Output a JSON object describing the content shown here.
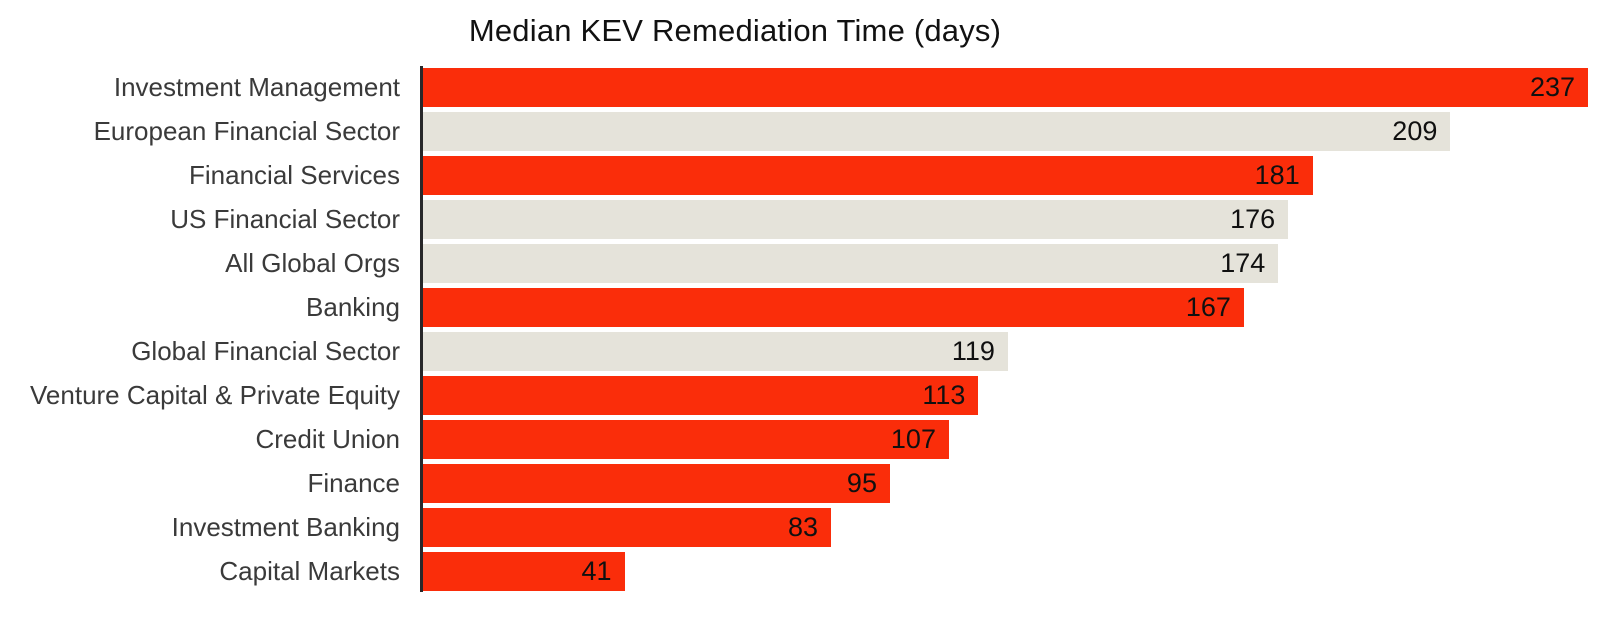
{
  "title": "Median KEV Remediation Time (days)",
  "colors": {
    "red": "#fa2d0a",
    "neutral": "#e5e3da",
    "axis": "#28282a",
    "category_text": "#3a3a3a",
    "value_text": "#101010",
    "background": "#ffffff"
  },
  "chart_data": {
    "type": "bar",
    "orientation": "horizontal",
    "title": "Median KEV Remediation Time (days)",
    "categories": [
      "Investment Management",
      "European Financial Sector",
      "Financial Services",
      "US Financial Sector",
      "All Global Orgs",
      "Banking",
      "Global Financial Sector",
      "Venture Capital & Private Equity",
      "Credit Union",
      "Finance",
      "Investment Banking",
      "Capital Markets"
    ],
    "values": [
      237,
      209,
      181,
      176,
      174,
      167,
      119,
      113,
      107,
      95,
      83,
      41
    ],
    "bar_colors": [
      "red",
      "neutral",
      "red",
      "neutral",
      "neutral",
      "red",
      "neutral",
      "red",
      "red",
      "red",
      "red",
      "red"
    ],
    "value_label_position": "inside-end",
    "xlim": [
      0,
      237
    ],
    "grid": false,
    "legend": null
  }
}
